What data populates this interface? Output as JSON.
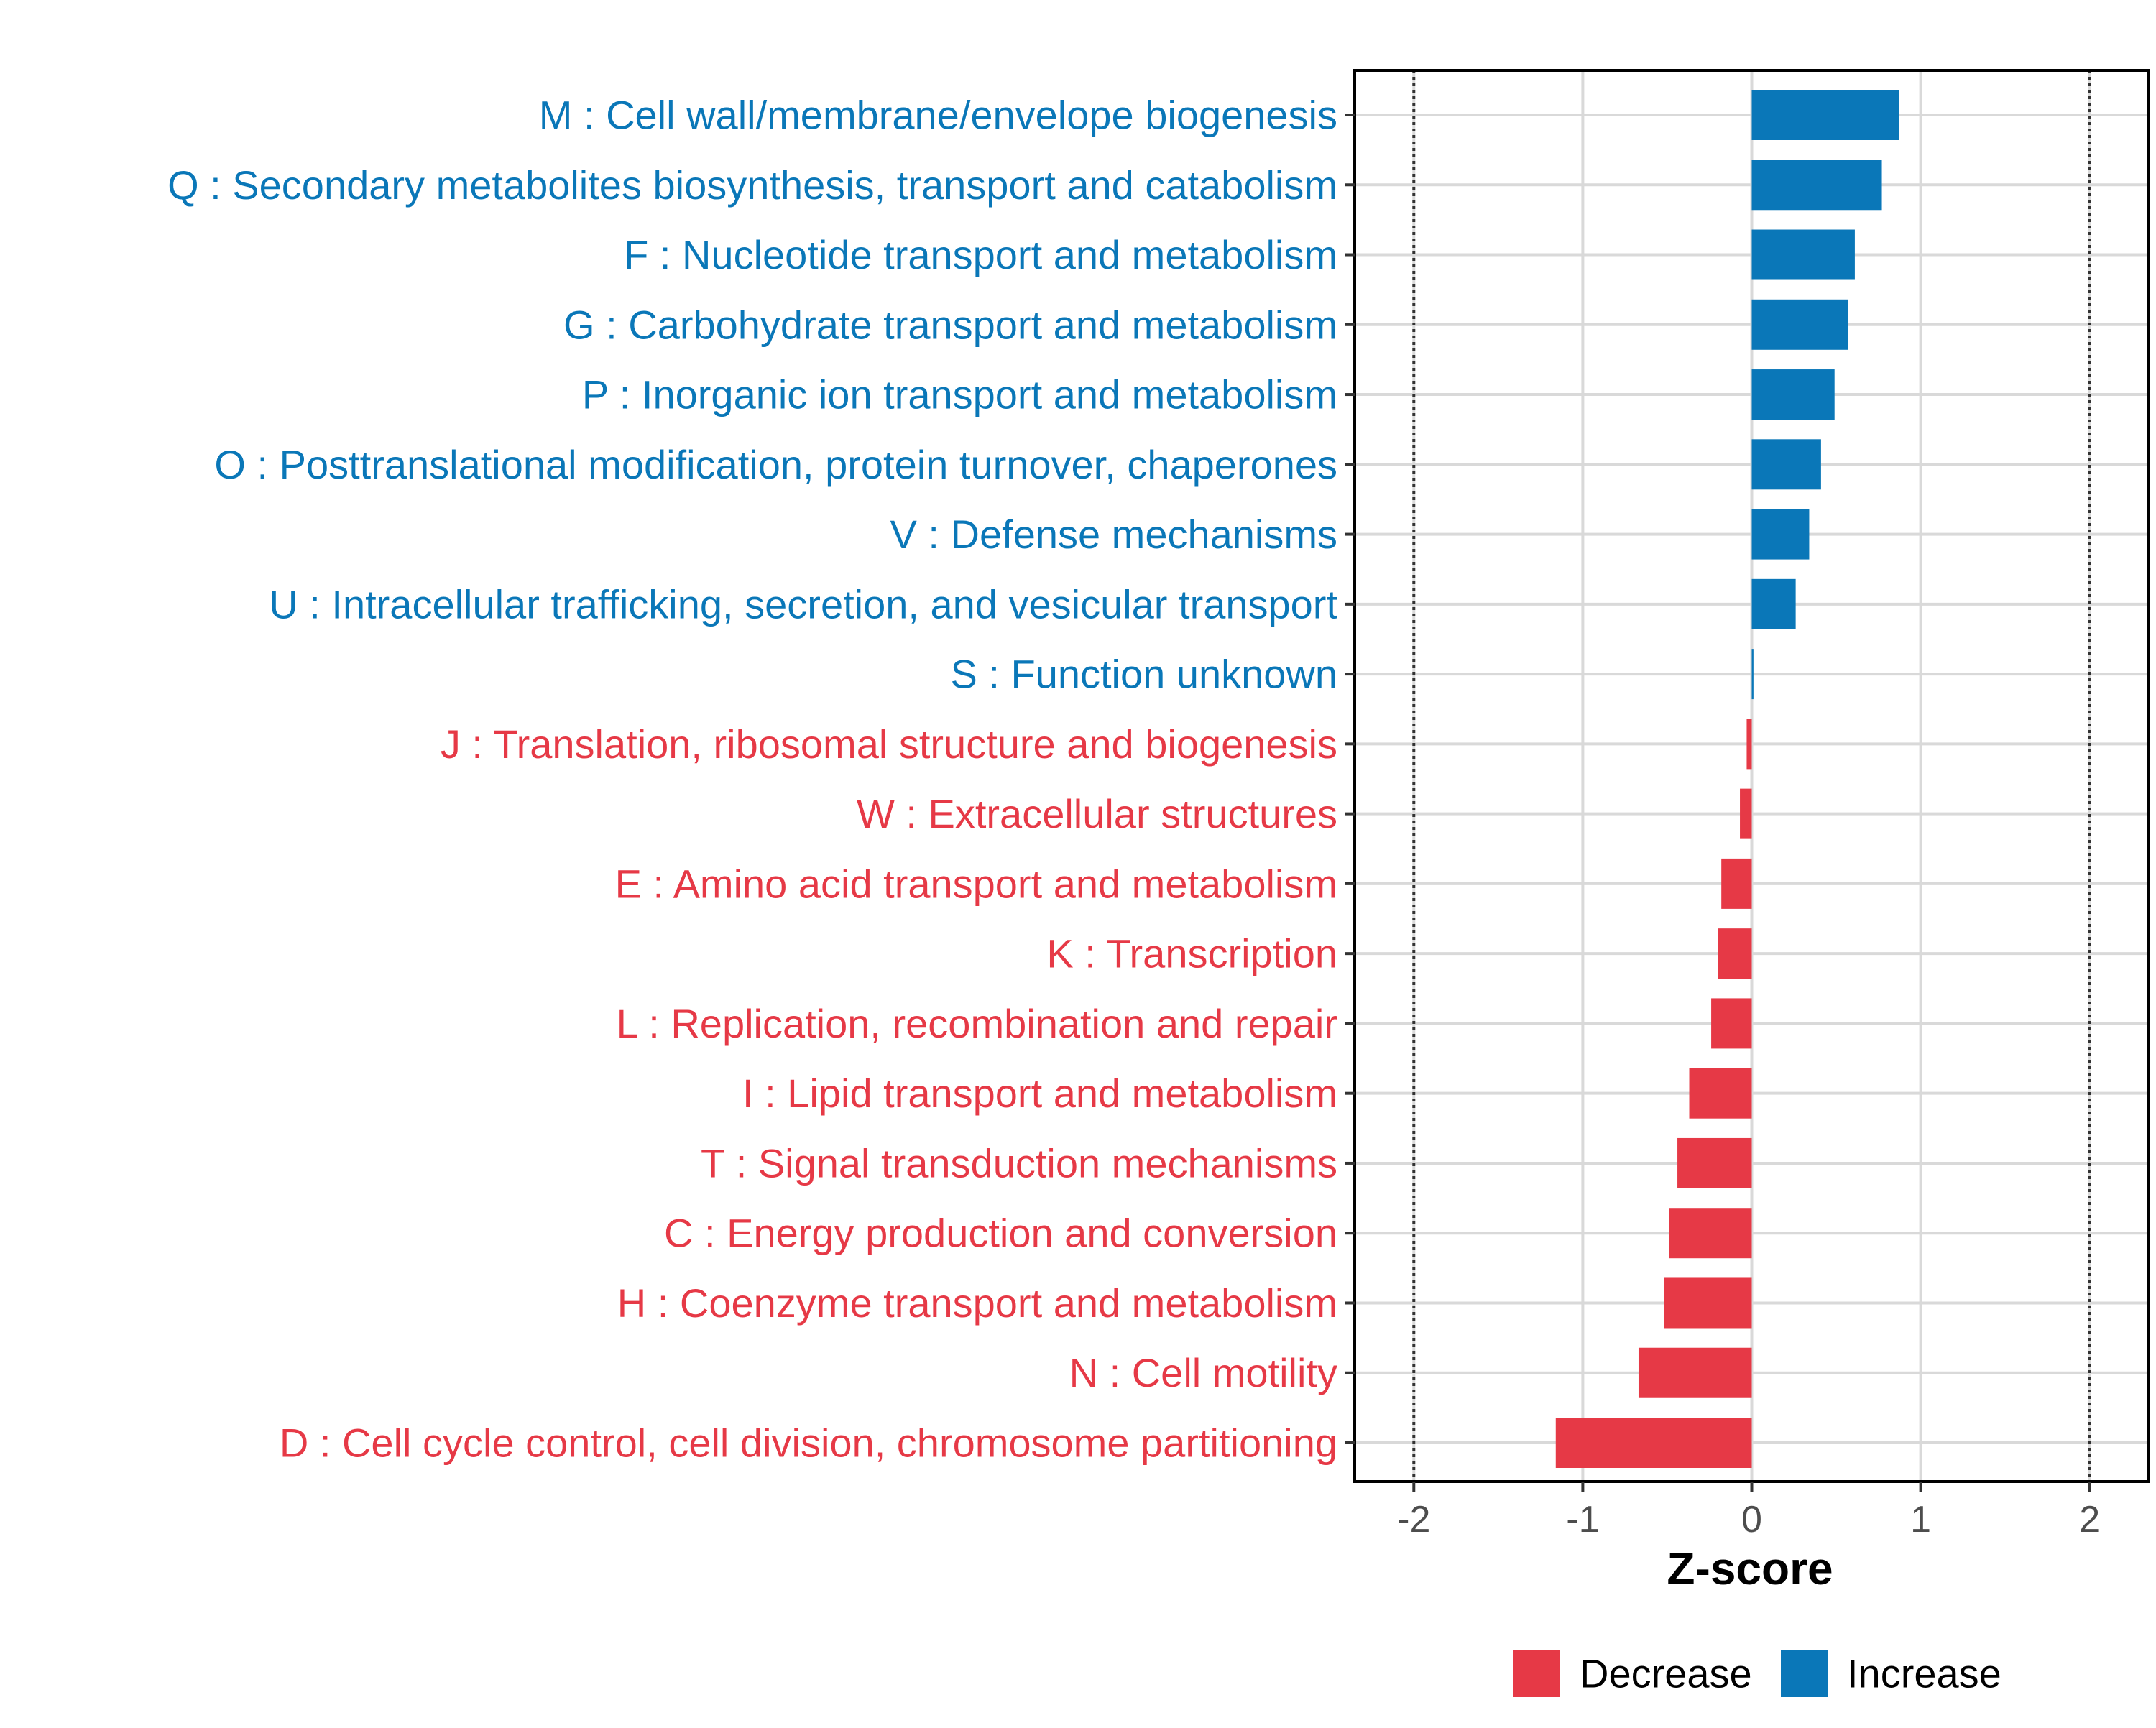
{
  "chart_data": {
    "type": "bar",
    "orientation": "horizontal",
    "title": "",
    "xlabel": "Z-score",
    "ylabel": "",
    "xlim": [
      -2.35,
      2.35
    ],
    "xticks": [
      -2,
      -1,
      0,
      1,
      2
    ],
    "xtick_labels": [
      "-2",
      "-1",
      "0",
      "1",
      "2"
    ],
    "reference_lines": [
      -2,
      2
    ],
    "grid": true,
    "legend_position": "bottom-right",
    "categories": [
      "M : Cell wall/membrane/envelope biogenesis",
      "Q : Secondary metabolites biosynthesis, transport and catabolism",
      "F : Nucleotide transport and metabolism",
      "G : Carbohydrate transport and metabolism",
      "P : Inorganic ion transport and metabolism",
      "O : Posttranslational modification, protein turnover, chaperones",
      "V : Defense mechanisms",
      "U : Intracellular trafficking, secretion, and vesicular transport",
      "S : Function unknown",
      "J : Translation, ribosomal structure and biogenesis",
      "W : Extracellular structures",
      "E : Amino acid transport and metabolism",
      "K : Transcription",
      "L : Replication, recombination and repair",
      "I : Lipid transport and metabolism",
      "T : Signal transduction mechanisms",
      "C : Energy production and conversion",
      "H : Coenzyme transport and metabolism",
      "N : Cell motility",
      "D : Cell cycle control, cell division, chromosome partitioning"
    ],
    "values": [
      0.87,
      0.77,
      0.61,
      0.57,
      0.49,
      0.41,
      0.34,
      0.26,
      0.01,
      -0.03,
      -0.07,
      -0.18,
      -0.2,
      -0.24,
      -0.37,
      -0.44,
      -0.49,
      -0.52,
      -0.67,
      -1.16
    ],
    "groups": [
      "Increase",
      "Increase",
      "Increase",
      "Increase",
      "Increase",
      "Increase",
      "Increase",
      "Increase",
      "Increase",
      "Decrease",
      "Decrease",
      "Decrease",
      "Decrease",
      "Decrease",
      "Decrease",
      "Decrease",
      "Decrease",
      "Decrease",
      "Decrease",
      "Decrease"
    ],
    "legend": [
      {
        "name": "Decrease",
        "color": "#e63946"
      },
      {
        "name": "Increase",
        "color": "#0a77b8"
      }
    ]
  }
}
